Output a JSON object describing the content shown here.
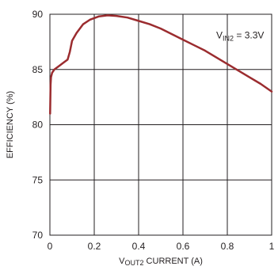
{
  "chart_data": {
    "type": "line",
    "title": "",
    "xlabel": {
      "main": "V",
      "sub": "OUT2",
      "rest": " CURRENT (A)"
    },
    "ylabel": "EFFICIENCY (%)",
    "xlim": [
      0,
      1
    ],
    "ylim": [
      70,
      90
    ],
    "xticks": [
      "0",
      "0.2",
      "0.4",
      "0.6",
      "0.8",
      "1"
    ],
    "yticks": [
      "70",
      "75",
      "80",
      "85",
      "90"
    ],
    "grid": true,
    "legend": "none",
    "annotation": {
      "main": "V",
      "sub": "IN2",
      "rest": " = 3.3V",
      "anchor": [
        0.75,
        87.8
      ]
    },
    "series": [
      {
        "name": "",
        "color": "#9b2c2f",
        "points": [
          [
            0.001,
            81.0
          ],
          [
            0.003,
            83.6
          ],
          [
            0.005,
            84.3
          ],
          [
            0.01,
            84.7
          ],
          [
            0.02,
            85.0
          ],
          [
            0.04,
            85.3
          ],
          [
            0.06,
            85.6
          ],
          [
            0.08,
            85.9
          ],
          [
            0.09,
            86.6
          ],
          [
            0.1,
            87.6
          ],
          [
            0.12,
            88.3
          ],
          [
            0.15,
            89.1
          ],
          [
            0.18,
            89.5
          ],
          [
            0.22,
            89.8
          ],
          [
            0.26,
            89.9
          ],
          [
            0.3,
            89.85
          ],
          [
            0.35,
            89.7
          ],
          [
            0.4,
            89.4
          ],
          [
            0.45,
            89.1
          ],
          [
            0.5,
            88.7
          ],
          [
            0.55,
            88.2
          ],
          [
            0.6,
            87.7
          ],
          [
            0.65,
            87.2
          ],
          [
            0.7,
            86.7
          ],
          [
            0.75,
            86.1
          ],
          [
            0.8,
            85.5
          ],
          [
            0.85,
            84.9
          ],
          [
            0.9,
            84.3
          ],
          [
            0.95,
            83.7
          ],
          [
            1.0,
            83.0
          ]
        ]
      }
    ]
  }
}
